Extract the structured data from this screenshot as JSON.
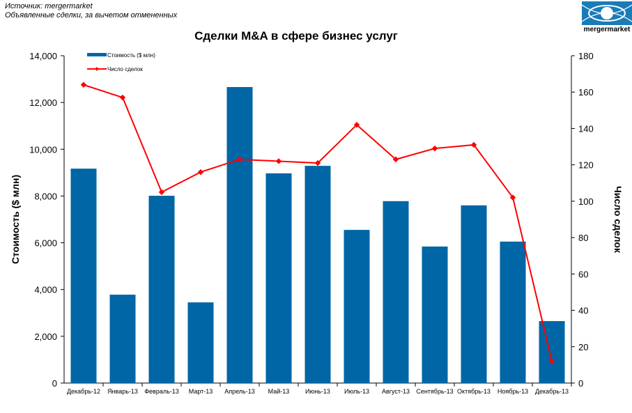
{
  "source_line1": "Источник: mergermarket",
  "source_line2": "Объявленные сделки, за вычетом отмененных",
  "logo_text": "mergermarket",
  "colors": {
    "bar": "#0066A6",
    "line": "#FF0000"
  },
  "chart_data": {
    "type": "bar+line",
    "title": "Сделки  M&A в сфере бизнес услуг",
    "categories": [
      "Декабрь-12",
      "Январь-13",
      "Февраль-13",
      "Март-13",
      "Апрель-13",
      "Май-13",
      "Июнь-13",
      "Июль-13",
      "Август-13",
      "Сентябрь-13",
      "Октябрь-13",
      "Ноябрь-13",
      "Декабрь-13"
    ],
    "series": [
      {
        "name": "Стоимость  ($ млн)",
        "type": "bar",
        "axis": "left",
        "values": [
          9170,
          3780,
          8010,
          3450,
          12660,
          8970,
          9290,
          6550,
          7780,
          5840,
          7600,
          6050,
          2650
        ]
      },
      {
        "name": "Число сделок",
        "type": "line",
        "axis": "right",
        "values": [
          164,
          157,
          105,
          116,
          123,
          122,
          121,
          142,
          123,
          129,
          131,
          102,
          12
        ]
      }
    ],
    "ylabel": "Стоимость ($ млн)",
    "y2label": "Число сделок",
    "ylim": [
      0,
      14000
    ],
    "y2lim": [
      0,
      180
    ],
    "yticks": [
      "0",
      "2,000",
      "4,000",
      "6,000",
      "8,000",
      "10,000",
      "12,000",
      "14,000"
    ],
    "y2ticks": [
      "0",
      "20",
      "40",
      "60",
      "80",
      "100",
      "120",
      "140",
      "160",
      "180"
    ],
    "legend": "top-left"
  }
}
